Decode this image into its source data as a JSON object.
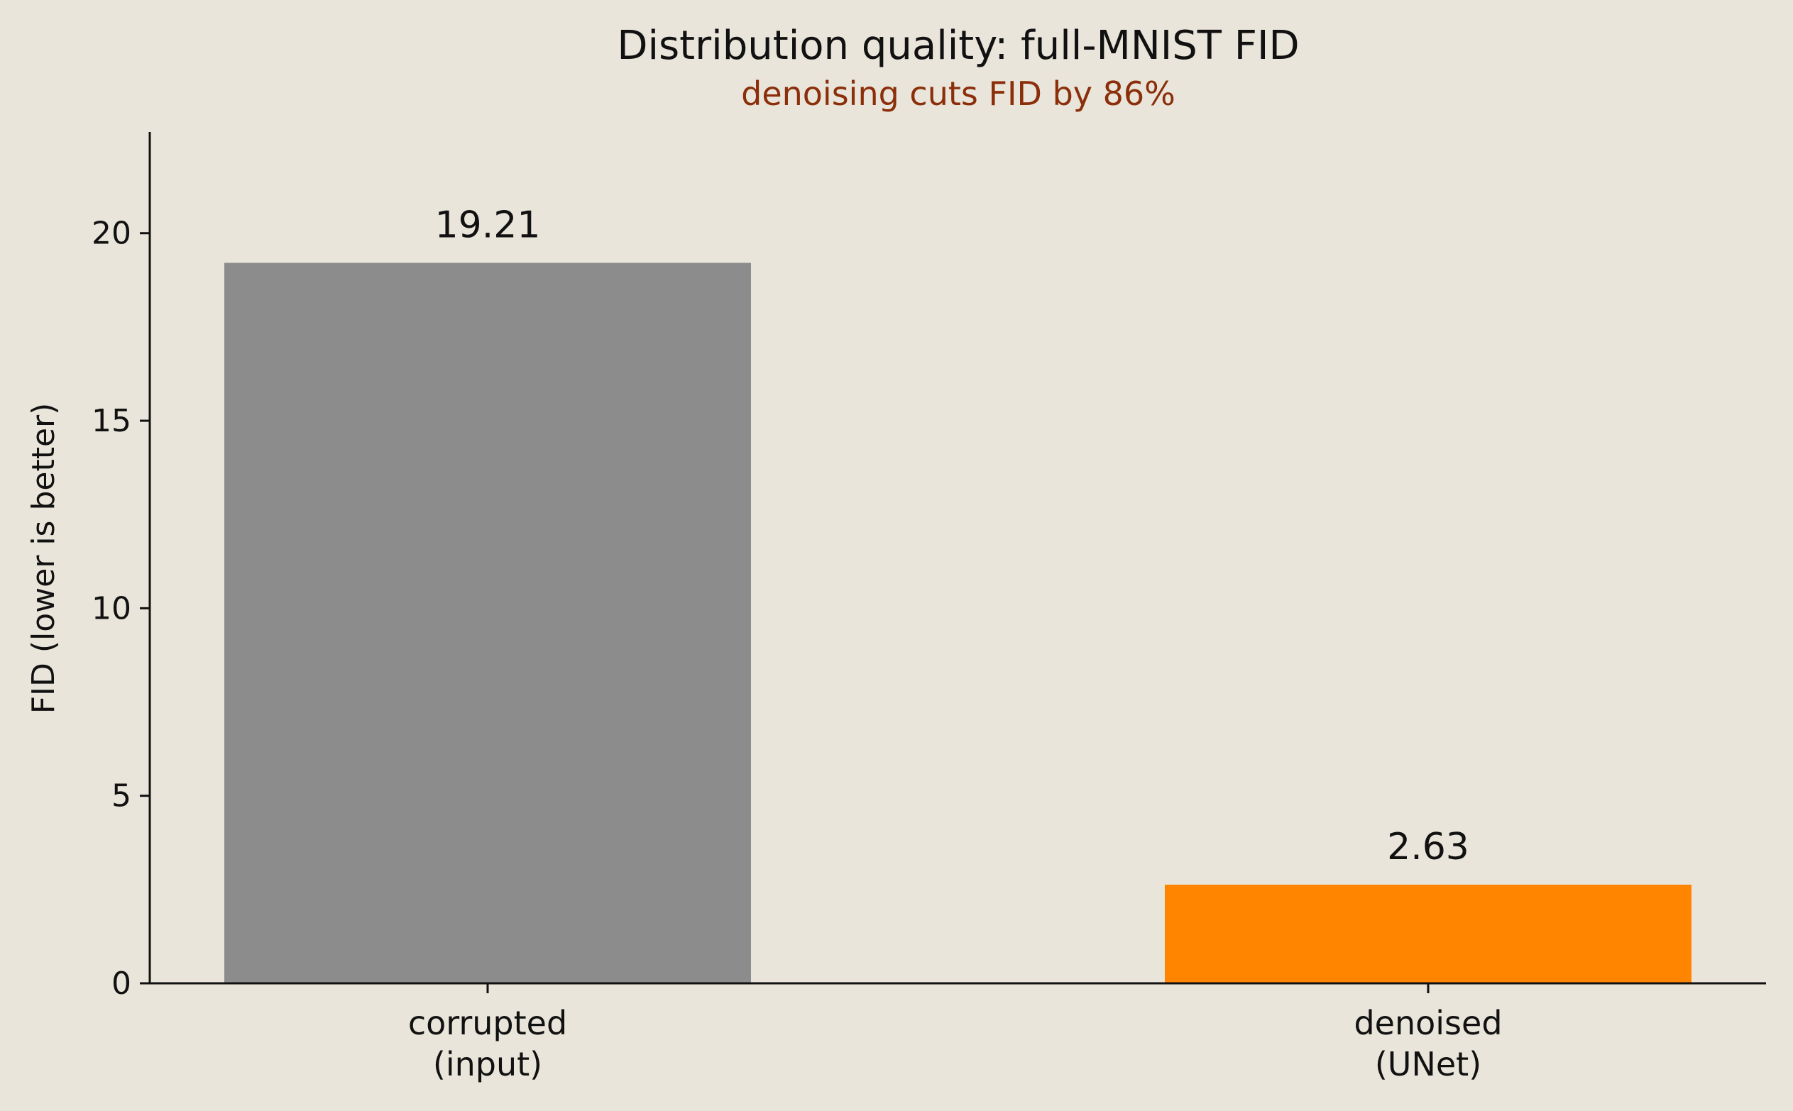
{
  "chart_data": {
    "type": "bar",
    "title": "Distribution quality: full-MNIST FID",
    "subtitle": "denoising cuts FID by 86%",
    "xlabel": "",
    "ylabel": "FID (lower is better)",
    "categories": [
      "corrupted\n(input)",
      "denoised\n(UNet)"
    ],
    "values": [
      19.21,
      2.63
    ],
    "value_labels": [
      "19.21",
      "2.63"
    ],
    "ylim": [
      0,
      22.7
    ],
    "yticks": [
      0,
      5,
      10,
      15,
      20
    ],
    "grid": false,
    "legend": "none"
  },
  "colors": {
    "background": "#e9e5da",
    "subtitle": "#8b2e0a",
    "axis": "#111111",
    "bars": [
      "#8c8c8c",
      "#ff8500"
    ]
  }
}
